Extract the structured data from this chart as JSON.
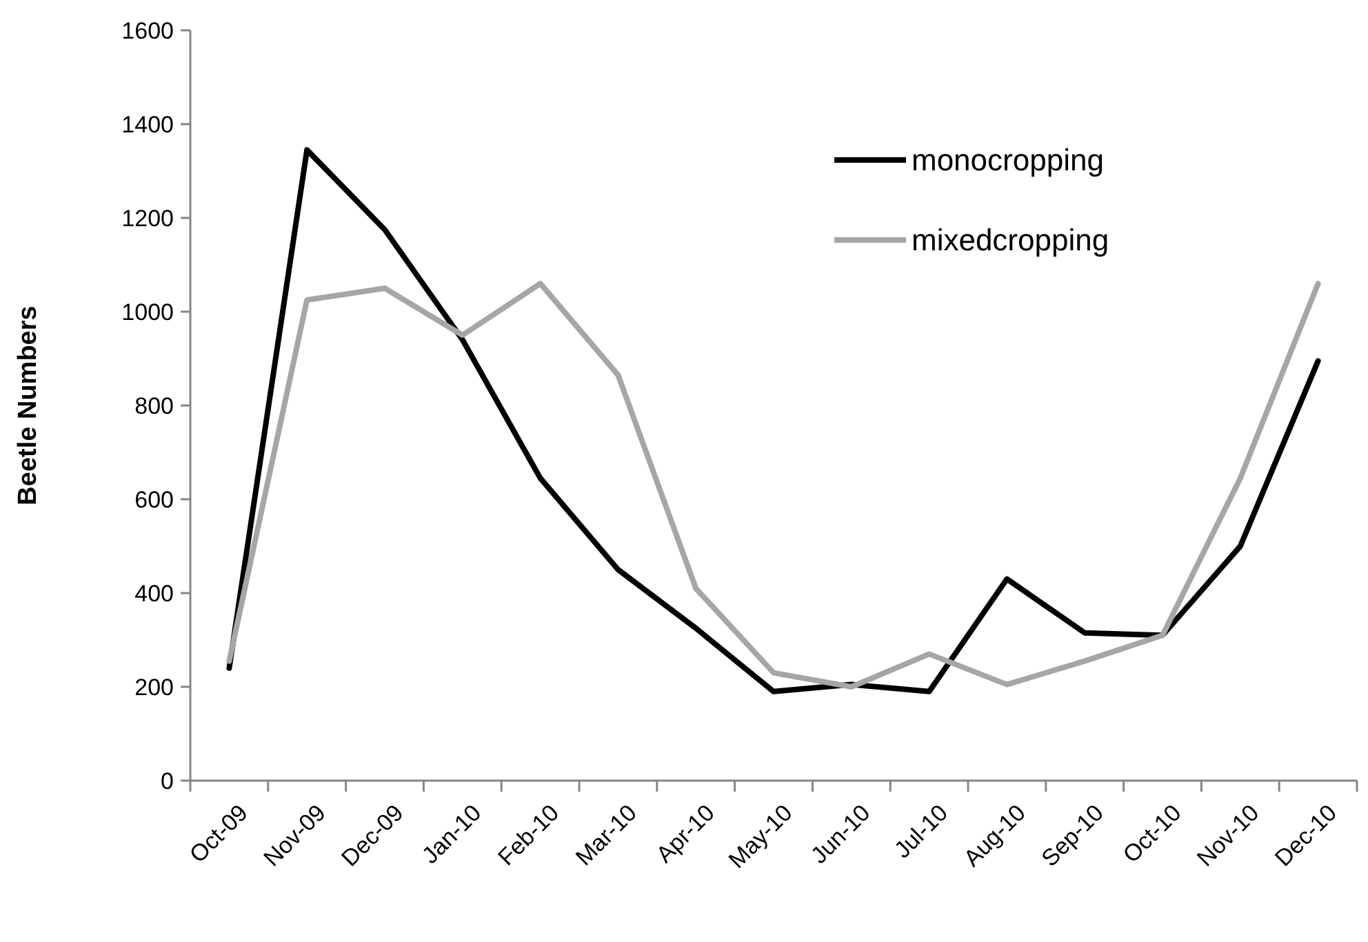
{
  "chart_data": {
    "type": "line",
    "ylabel": "Beetle Numbers",
    "categories": [
      "Oct-09",
      "Nov-09",
      "Dec-09",
      "Jan-10",
      "Feb-10",
      "Mar-10",
      "Apr-10",
      "May-10",
      "Jun-10",
      "Jul-10",
      "Aug-10",
      "Sep-10",
      "Oct-10",
      "Nov-10",
      "Dec-10"
    ],
    "series": [
      {
        "name": "monocropping",
        "color": "#000000",
        "values": [
          240,
          1345,
          1175,
          940,
          645,
          450,
          325,
          190,
          205,
          190,
          430,
          315,
          310,
          500,
          895
        ]
      },
      {
        "name": "mixedcropping",
        "color": "#a6a6a6",
        "values": [
          255,
          1025,
          1050,
          950,
          1060,
          865,
          410,
          230,
          200,
          270,
          205,
          255,
          310,
          645,
          1060
        ]
      }
    ],
    "ylim": [
      0,
      1600
    ],
    "yticks": [
      0,
      200,
      400,
      600,
      800,
      1000,
      1200,
      1400,
      1600
    ],
    "grid": false,
    "legend": "top right",
    "marker": "none",
    "line_style": "solid"
  }
}
